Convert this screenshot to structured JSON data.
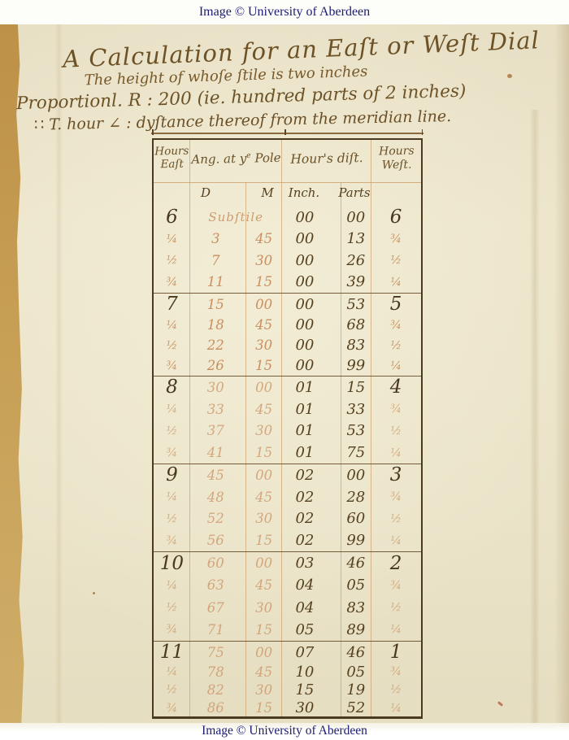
{
  "banner": {
    "top": "Image © University of Aberdeen",
    "bottom": "Image © University of Aberdeen"
  },
  "title": {
    "line1": "A Calculation for an Eaſt or Weſt Dial",
    "line2": "The height of whoſe ſtile is two inches",
    "line3": "Proportionl.  R : 200 (ie. hundred parts of 2 inches)",
    "line4": "∷ T. hour ∠ : dyſtance thereof from the meridian line."
  },
  "table": {
    "headers": {
      "hours_east_line1": "Hours",
      "hours_east_line2": "Eaſt",
      "angle_pre": "Ang. at y",
      "angle_sup": "e",
      "angle_post": " Pole",
      "dist": "Hour's diſt.",
      "hours_west_line1": "Hours",
      "hours_west_line2": "Weſt."
    },
    "subheaders": {
      "degrees": "D",
      "minutes": "M",
      "inch": "Inch.",
      "parts": "Parts"
    },
    "blocks": [
      {
        "rows": [
          {
            "east": "6",
            "note": "Subſtile",
            "inch": "00",
            "parts": "00",
            "west": "6"
          },
          {
            "east": "¼",
            "d": "3",
            "m": "45",
            "inch": "00",
            "parts": "13",
            "west": "¾"
          },
          {
            "east": "½",
            "d": "7",
            "m": "30",
            "inch": "00",
            "parts": "26",
            "west": "½"
          },
          {
            "east": "¾",
            "d": "11",
            "m": "15",
            "inch": "00",
            "parts": "39",
            "west": "¼"
          }
        ]
      },
      {
        "rows": [
          {
            "east": "7",
            "d": "15",
            "m": "00",
            "inch": "00",
            "parts": "53",
            "west": "5"
          },
          {
            "east": "¼",
            "d": "18",
            "m": "45",
            "inch": "00",
            "parts": "68",
            "west": "¾"
          },
          {
            "east": "½",
            "d": "22",
            "m": "30",
            "inch": "00",
            "parts": "83",
            "west": "½"
          },
          {
            "east": "¾",
            "d": "26",
            "m": "15",
            "inch": "00",
            "parts": "99",
            "west": "¼"
          }
        ]
      },
      {
        "rows": [
          {
            "east": "8",
            "d": "30",
            "m": "00",
            "inch": "01",
            "parts": "15",
            "west": "4"
          },
          {
            "east": "¼",
            "d": "33",
            "m": "45",
            "inch": "01",
            "parts": "33",
            "west": "¾"
          },
          {
            "east": "½",
            "d": "37",
            "m": "30",
            "inch": "01",
            "parts": "53",
            "west": "½"
          },
          {
            "east": "¾",
            "d": "41",
            "m": "15",
            "inch": "01",
            "parts": "75",
            "west": "¼"
          }
        ]
      },
      {
        "rows": [
          {
            "east": "9",
            "d": "45",
            "m": "00",
            "inch": "02",
            "parts": "00",
            "west": "3"
          },
          {
            "east": "¼",
            "d": "48",
            "m": "45",
            "inch": "02",
            "parts": "28",
            "west": "¾"
          },
          {
            "east": "½",
            "d": "52",
            "m": "30",
            "inch": "02",
            "parts": "60",
            "west": "½"
          },
          {
            "east": "¾",
            "d": "56",
            "m": "15",
            "inch": "02",
            "parts": "99",
            "west": "¼"
          }
        ]
      },
      {
        "rows": [
          {
            "east": "10",
            "d": "60",
            "m": "00",
            "inch": "03",
            "parts": "46",
            "west": "2"
          },
          {
            "east": "¼",
            "d": "63",
            "m": "45",
            "inch": "04",
            "parts": "05",
            "west": "¾"
          },
          {
            "east": "½",
            "d": "67",
            "m": "30",
            "inch": "04",
            "parts": "83",
            "west": "½"
          },
          {
            "east": "¾",
            "d": "71",
            "m": "15",
            "inch": "05",
            "parts": "89",
            "west": "¼"
          }
        ]
      },
      {
        "rows": [
          {
            "east": "11",
            "d": "75",
            "m": "00",
            "inch": "07",
            "parts": "46",
            "west": "1"
          },
          {
            "east": "¼",
            "d": "78",
            "m": "45",
            "inch": "10",
            "parts": "05",
            "west": "¾"
          },
          {
            "east": "½",
            "d": "82",
            "m": "30",
            "inch": "15",
            "parts": "19",
            "west": "½"
          },
          {
            "east": "¾",
            "d": "86",
            "m": "15",
            "inch": "30",
            "parts": "52",
            "west": "¼"
          }
        ]
      }
    ]
  },
  "colors": {
    "paper": "#eae3c9",
    "gutter_tan": "#c79f55",
    "ink_dark": "#55411f",
    "ink_faded_red": "#c98f60",
    "ink_brown": "#6d5226",
    "table_border": "#4a3a22",
    "caption_text": "#1c1c72",
    "caption_bg": "#fdfdfa"
  }
}
